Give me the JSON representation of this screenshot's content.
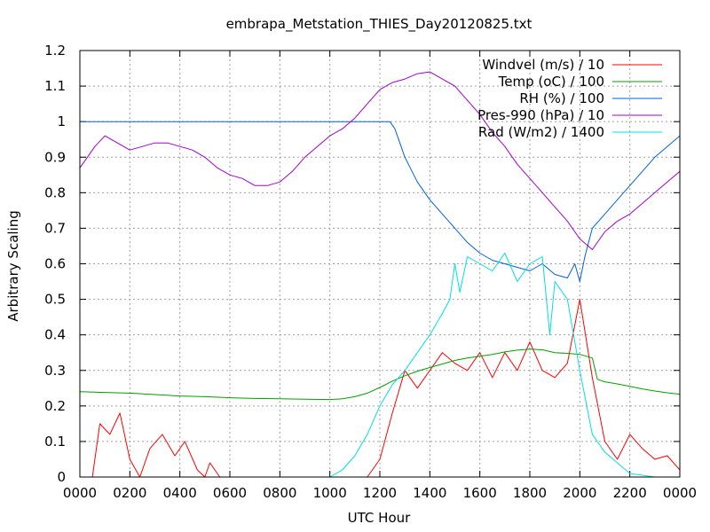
{
  "chart_data": {
    "type": "line",
    "title": "embrapa_Metstation_THIES_Day20120825.txt",
    "xlabel": "UTC Hour",
    "ylabel": "Arbitrary Scaling",
    "xlim": [
      0,
      2400
    ],
    "ylim": [
      0,
      1.2
    ],
    "grid": true,
    "legend_position": "top-right",
    "x_ticks": [
      "0000",
      "0200",
      "0400",
      "0600",
      "0800",
      "1000",
      "1200",
      "1400",
      "1600",
      "1800",
      "2000",
      "2200",
      "0000"
    ],
    "y_ticks": [
      "0",
      "0.1",
      "0.2",
      "0.3",
      "0.4",
      "0.5",
      "0.6",
      "0.7",
      "0.8",
      "0.9",
      "1",
      "1.1",
      "1.2"
    ],
    "series": [
      {
        "name": "Windvel (m/s) / 10",
        "color": "#ff0000",
        "x": [
          0,
          50,
          80,
          120,
          160,
          200,
          240,
          280,
          330,
          380,
          420,
          470,
          500,
          520,
          560,
          700,
          900,
          1050,
          1150,
          1200,
          1250,
          1300,
          1350,
          1400,
          1450,
          1500,
          1550,
          1600,
          1650,
          1700,
          1750,
          1800,
          1850,
          1900,
          1950,
          2000,
          2050,
          2100,
          2150,
          2200,
          2250,
          2300,
          2350,
          2400
        ],
        "y": [
          0,
          0,
          0.15,
          0.12,
          0.18,
          0.05,
          0,
          0.08,
          0.12,
          0.06,
          0.1,
          0.02,
          0,
          0.04,
          0,
          0,
          0,
          0,
          0,
          0.05,
          0.18,
          0.3,
          0.25,
          0.3,
          0.35,
          0.32,
          0.3,
          0.35,
          0.28,
          0.35,
          0.3,
          0.38,
          0.3,
          0.28,
          0.32,
          0.5,
          0.28,
          0.1,
          0.05,
          0.12,
          0.08,
          0.05,
          0.06,
          0.02
        ]
      },
      {
        "name": "Temp (oC) / 100",
        "color": "#00a000",
        "x": [
          0,
          100,
          200,
          300,
          400,
          500,
          600,
          700,
          800,
          900,
          1000,
          1050,
          1100,
          1150,
          1200,
          1250,
          1300,
          1350,
          1400,
          1450,
          1500,
          1550,
          1600,
          1650,
          1700,
          1750,
          1800,
          1850,
          1900,
          1950,
          2000,
          2050,
          2070,
          2100,
          2150,
          2200,
          2250,
          2300,
          2350,
          2400
        ],
        "y": [
          0.24,
          0.238,
          0.236,
          0.232,
          0.228,
          0.226,
          0.223,
          0.221,
          0.22,
          0.219,
          0.218,
          0.22,
          0.226,
          0.236,
          0.252,
          0.27,
          0.285,
          0.298,
          0.308,
          0.318,
          0.328,
          0.335,
          0.34,
          0.345,
          0.352,
          0.357,
          0.36,
          0.358,
          0.35,
          0.348,
          0.345,
          0.335,
          0.275,
          0.268,
          0.262,
          0.255,
          0.248,
          0.242,
          0.237,
          0.233
        ]
      },
      {
        "name": "RH (%) / 100",
        "color": "#0060e0",
        "x": [
          0,
          200,
          400,
          600,
          800,
          1000,
          1200,
          1240,
          1260,
          1300,
          1350,
          1400,
          1450,
          1500,
          1550,
          1600,
          1650,
          1700,
          1750,
          1800,
          1850,
          1900,
          1950,
          1980,
          2000,
          2020,
          2050,
          2100,
          2150,
          2200,
          2250,
          2300,
          2350,
          2400
        ],
        "y": [
          1.0,
          1.0,
          1.0,
          1.0,
          1.0,
          1.0,
          1.0,
          1.0,
          0.98,
          0.9,
          0.83,
          0.78,
          0.74,
          0.7,
          0.66,
          0.63,
          0.61,
          0.6,
          0.59,
          0.58,
          0.6,
          0.57,
          0.56,
          0.6,
          0.55,
          0.62,
          0.7,
          0.74,
          0.78,
          0.82,
          0.86,
          0.9,
          0.93,
          0.96
        ]
      },
      {
        "name": "Pres-990 (hPa) / 10",
        "color": "#a000d0",
        "x": [
          0,
          30,
          60,
          100,
          150,
          200,
          250,
          300,
          350,
          400,
          450,
          500,
          550,
          600,
          650,
          700,
          750,
          800,
          850,
          900,
          950,
          1000,
          1050,
          1100,
          1150,
          1200,
          1250,
          1300,
          1350,
          1400,
          1450,
          1500,
          1550,
          1600,
          1650,
          1700,
          1750,
          1800,
          1850,
          1900,
          1950,
          2000,
          2050,
          2100,
          2150,
          2200,
          2250,
          2300,
          2350,
          2400
        ],
        "y": [
          0.87,
          0.9,
          0.93,
          0.96,
          0.94,
          0.92,
          0.93,
          0.94,
          0.94,
          0.93,
          0.92,
          0.9,
          0.87,
          0.85,
          0.84,
          0.82,
          0.82,
          0.83,
          0.86,
          0.9,
          0.93,
          0.96,
          0.98,
          1.01,
          1.05,
          1.09,
          1.11,
          1.12,
          1.135,
          1.14,
          1.12,
          1.1,
          1.06,
          1.02,
          0.97,
          0.93,
          0.88,
          0.84,
          0.8,
          0.76,
          0.72,
          0.67,
          0.64,
          0.69,
          0.72,
          0.74,
          0.77,
          0.8,
          0.83,
          0.86
        ]
      },
      {
        "name": "Rad (W/m2) / 1400",
        "color": "#00e0e0",
        "x": [
          0,
          200,
          400,
          600,
          800,
          1000,
          1050,
          1100,
          1150,
          1200,
          1250,
          1300,
          1350,
          1400,
          1450,
          1480,
          1500,
          1520,
          1550,
          1600,
          1650,
          1700,
          1750,
          1800,
          1850,
          1880,
          1900,
          1950,
          2000,
          2050,
          2100,
          2150,
          2200,
          2300,
          2400
        ],
        "y": [
          0,
          0,
          0,
          0,
          0,
          0,
          0.02,
          0.06,
          0.12,
          0.2,
          0.26,
          0.3,
          0.35,
          0.4,
          0.46,
          0.5,
          0.6,
          0.52,
          0.62,
          0.6,
          0.58,
          0.63,
          0.55,
          0.6,
          0.62,
          0.4,
          0.55,
          0.5,
          0.3,
          0.12,
          0.07,
          0.04,
          0.01,
          0,
          0
        ]
      }
    ]
  }
}
